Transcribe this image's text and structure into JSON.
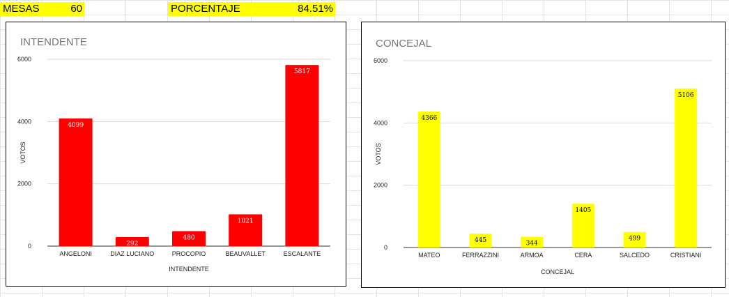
{
  "header": {
    "mesas_label": "MESAS",
    "mesas_value": "60",
    "porcentaje_label": "PORCENTAJE",
    "porcentaje_value": "84.51%"
  },
  "colors": {
    "intendente_bar": "#ff0000",
    "concejal_bar": "#ffff00",
    "highlight": "#ffff00"
  },
  "chart_data": [
    {
      "type": "bar",
      "title": "INTENDENTE",
      "xlabel": "INTENDENTE",
      "ylabel": "VOTOS",
      "categories": [
        "ANGELONI",
        "DIAZ LUCIANO",
        "PROCOPIO",
        "BEAUVALLET",
        "ESCALANTE"
      ],
      "values": [
        4099,
        292,
        480,
        1021,
        5817
      ],
      "ylim": [
        0,
        6000
      ],
      "yticks": [
        0,
        2000,
        4000,
        6000
      ],
      "color": "#ff0000",
      "label_color": "#ffffff",
      "grid": true,
      "legend": "none"
    },
    {
      "type": "bar",
      "title": "CONCEJAL",
      "xlabel": "CONCEJAL",
      "ylabel": "VOTOS",
      "categories": [
        "MATEO",
        "FERRAZZINI",
        "ARMOA",
        "CERA",
        "SALCEDO",
        "CRISTIANI"
      ],
      "values": [
        4366,
        445,
        344,
        1405,
        499,
        5106
      ],
      "ylim": [
        0,
        6000
      ],
      "yticks": [
        0,
        2000,
        4000,
        6000
      ],
      "color": "#ffff00",
      "label_color": "#000000",
      "grid": true,
      "legend": "none"
    }
  ]
}
